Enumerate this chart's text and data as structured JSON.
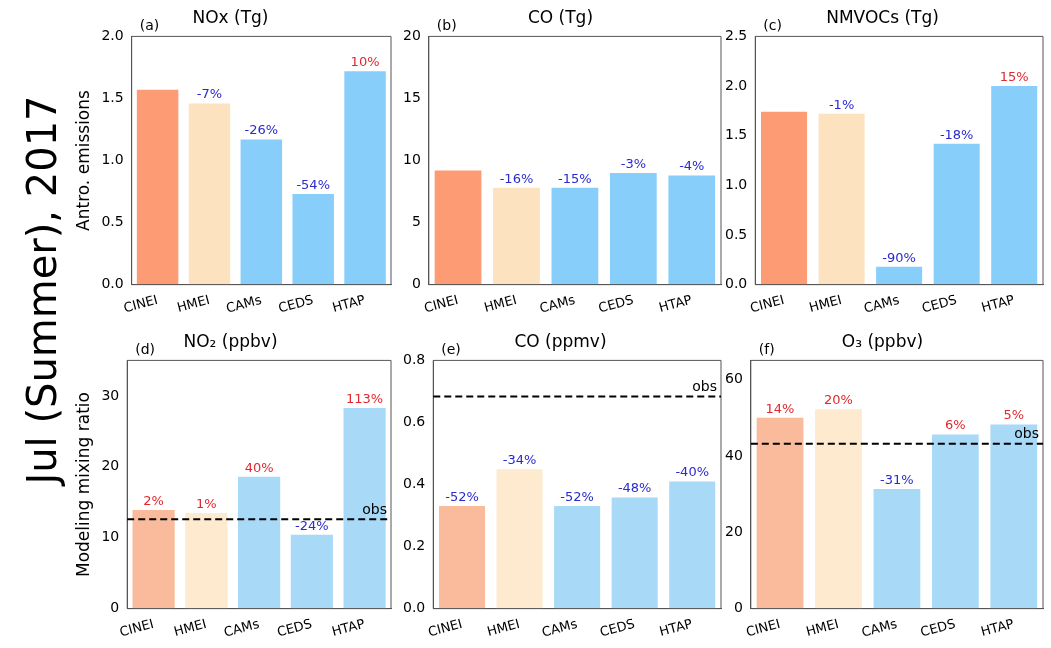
{
  "chart_data": [
    {
      "type": "bar",
      "title": "NOx (Tg)",
      "ylabel": "Antro. emissions",
      "annotations": [
        "(a)",
        "Jul (Summer), 2017",
        {
          "text": "-7%",
          "x": "HMEI",
          "y": 1.46
        },
        {
          "text": "-26%",
          "x": "CAMs",
          "y": 1.17
        },
        {
          "text": "-54%",
          "x": "CEDS",
          "y": 0.73
        },
        {
          "text": "10%",
          "x": "HTAP",
          "y": 1.72
        }
      ],
      "categories": [
        "CINEI",
        "HMEI",
        "CAMs",
        "CEDS",
        "HTAP"
      ],
      "values": [
        1.57,
        1.46,
        1.17,
        0.73,
        1.72
      ],
      "colors": [
        "#fc9b74",
        "#fde2c0",
        "#87cefa",
        "#87cefa",
        "#87cefa"
      ],
      "ylim": [
        0,
        2
      ],
      "yticks": [
        {
          "value": 0,
          "label": "0.0"
        },
        {
          "value": 0.5,
          "label": "0.5"
        },
        {
          "value": 1,
          "label": "1.0"
        },
        {
          "value": 1.5,
          "label": "1.5"
        },
        {
          "value": 2,
          "label": "2.0"
        }
      ],
      "grid": false,
      "legend": false
    },
    {
      "type": "bar",
      "title": "CO (Tg)",
      "annotations": [
        "(b)",
        {
          "text": "-16%",
          "x": "HMEI",
          "y": 7.8
        },
        {
          "text": "-15%",
          "x": "CAMs",
          "y": 7.8
        },
        {
          "text": "-3%",
          "x": "CEDS",
          "y": 9.0
        },
        {
          "text": "-4%",
          "x": "HTAP",
          "y": 8.8
        }
      ],
      "categories": [
        "CINEI",
        "HMEI",
        "CAMs",
        "CEDS",
        "HTAP"
      ],
      "values": [
        9.2,
        7.8,
        7.8,
        9.0,
        8.8
      ],
      "colors": [
        "#fc9b74",
        "#fde2c0",
        "#87cefa",
        "#87cefa",
        "#87cefa"
      ],
      "ylim": [
        0,
        20
      ],
      "yticks": [
        0,
        5,
        10,
        15,
        20
      ],
      "grid": false,
      "legend": false
    },
    {
      "type": "bar",
      "title": "NMVOCs (Tg)",
      "annotations": [
        "(c)",
        {
          "text": "-1%",
          "x": "HMEI",
          "y": 1.72
        },
        {
          "text": "-90%",
          "x": "CAMs",
          "y": 0.18
        },
        {
          "text": "-18%",
          "x": "CEDS",
          "y": 1.42
        },
        {
          "text": "15%",
          "x": "HTAP",
          "y": 2.0
        }
      ],
      "categories": [
        "CINEI",
        "HMEI",
        "CAMs",
        "CEDS",
        "HTAP"
      ],
      "values": [
        1.74,
        1.72,
        0.18,
        1.42,
        2.0
      ],
      "colors": [
        "#fc9b74",
        "#fde2c0",
        "#87cefa",
        "#87cefa",
        "#87cefa"
      ],
      "ylim": [
        0,
        2.5
      ],
      "yticks": [
        {
          "value": 0,
          "label": "0.0"
        },
        {
          "value": 0.5,
          "label": "0.5"
        },
        {
          "value": 1,
          "label": "1.0"
        },
        {
          "value": 1.5,
          "label": "1.5"
        },
        {
          "value": 2,
          "label": "2.0"
        },
        {
          "value": 2.5,
          "label": "2.5"
        }
      ],
      "grid": false,
      "legend": false
    },
    {
      "type": "bar",
      "title": "NO₂ (ppbv)",
      "ylabel": "Modeling mixing ratio",
      "annotations": [
        "(d)",
        {
          "text": "2%",
          "x": "CINEI",
          "y": 13.9
        },
        {
          "text": "1%",
          "x": "HMEI",
          "y": 13.5
        },
        {
          "text": "40%",
          "x": "CAMs",
          "y": 18.6
        },
        {
          "text": "-24%",
          "x": "CEDS",
          "y": 10.4
        },
        {
          "text": "113%",
          "x": "HTAP",
          "y": 28.3
        }
      ],
      "categories": [
        "CINEI",
        "HMEI",
        "CAMs",
        "CEDS",
        "HTAP"
      ],
      "values": [
        13.9,
        13.5,
        18.6,
        10.4,
        28.3
      ],
      "colors": [
        "#f9bb9b",
        "#fdeacf",
        "#a8daf7",
        "#a8daf7",
        "#a8daf7"
      ],
      "ylim": [
        0,
        35
      ],
      "yticks": [
        0,
        10,
        20,
        30
      ],
      "ref_lines": [
        {
          "axis": "y",
          "value": 12.6,
          "label": "obs",
          "color": "#000000",
          "line_style": "dashed"
        }
      ],
      "grid": false,
      "legend": false
    },
    {
      "type": "bar",
      "title": "CO (ppmv)",
      "annotations": [
        "(e)",
        {
          "text": "-52%",
          "x": "CINEI",
          "y": 0.331
        },
        {
          "text": "-34%",
          "x": "HMEI",
          "y": 0.449
        },
        {
          "text": "-52%",
          "x": "CAMs",
          "y": 0.331
        },
        {
          "text": "-48%",
          "x": "CEDS",
          "y": 0.358
        },
        {
          "text": "-40%",
          "x": "HTAP",
          "y": 0.41
        }
      ],
      "categories": [
        "CINEI",
        "HMEI",
        "CAMs",
        "CEDS",
        "HTAP"
      ],
      "values": [
        0.331,
        0.449,
        0.331,
        0.358,
        0.41
      ],
      "colors": [
        "#f9bb9b",
        "#fdeacf",
        "#a8daf7",
        "#a8daf7",
        "#a8daf7"
      ],
      "ylim": [
        0,
        0.8
      ],
      "yticks": [
        {
          "value": 0,
          "label": "0.0"
        },
        {
          "value": 0.2,
          "label": "0.2"
        },
        {
          "value": 0.4,
          "label": "0.4"
        },
        {
          "value": 0.6,
          "label": "0.6"
        },
        {
          "value": 0.8,
          "label": "0.8"
        }
      ],
      "ref_lines": [
        {
          "axis": "y",
          "value": 0.684,
          "label": "obs",
          "color": "#000000",
          "line_style": "dashed"
        }
      ],
      "grid": false,
      "legend": false
    },
    {
      "type": "bar",
      "title": "O₃ (ppbv)",
      "annotations": [
        "(f)",
        {
          "text": "14%",
          "x": "CINEI",
          "y": 50.0
        },
        {
          "text": "20%",
          "x": "HMEI",
          "y": 52.2
        },
        {
          "text": "-31%",
          "x": "CAMs",
          "y": 31.3
        },
        {
          "text": "6%",
          "x": "CEDS",
          "y": 45.6
        },
        {
          "text": "5%",
          "x": "HTAP",
          "y": 48.2
        }
      ],
      "categories": [
        "CINEI",
        "HMEI",
        "CAMs",
        "CEDS",
        "HTAP"
      ],
      "values": [
        50.0,
        52.2,
        31.3,
        45.6,
        48.2
      ],
      "colors": [
        "#f9bb9b",
        "#fdeacf",
        "#a8daf7",
        "#a8daf7",
        "#a8daf7"
      ],
      "ylim": [
        0,
        65
      ],
      "yticks": [
        0,
        20,
        40,
        60
      ],
      "ref_lines": [
        {
          "axis": "y",
          "value": 43.2,
          "label": "obs",
          "color": "#000000",
          "line_style": "dashed"
        }
      ],
      "grid": false,
      "legend": false
    }
  ]
}
